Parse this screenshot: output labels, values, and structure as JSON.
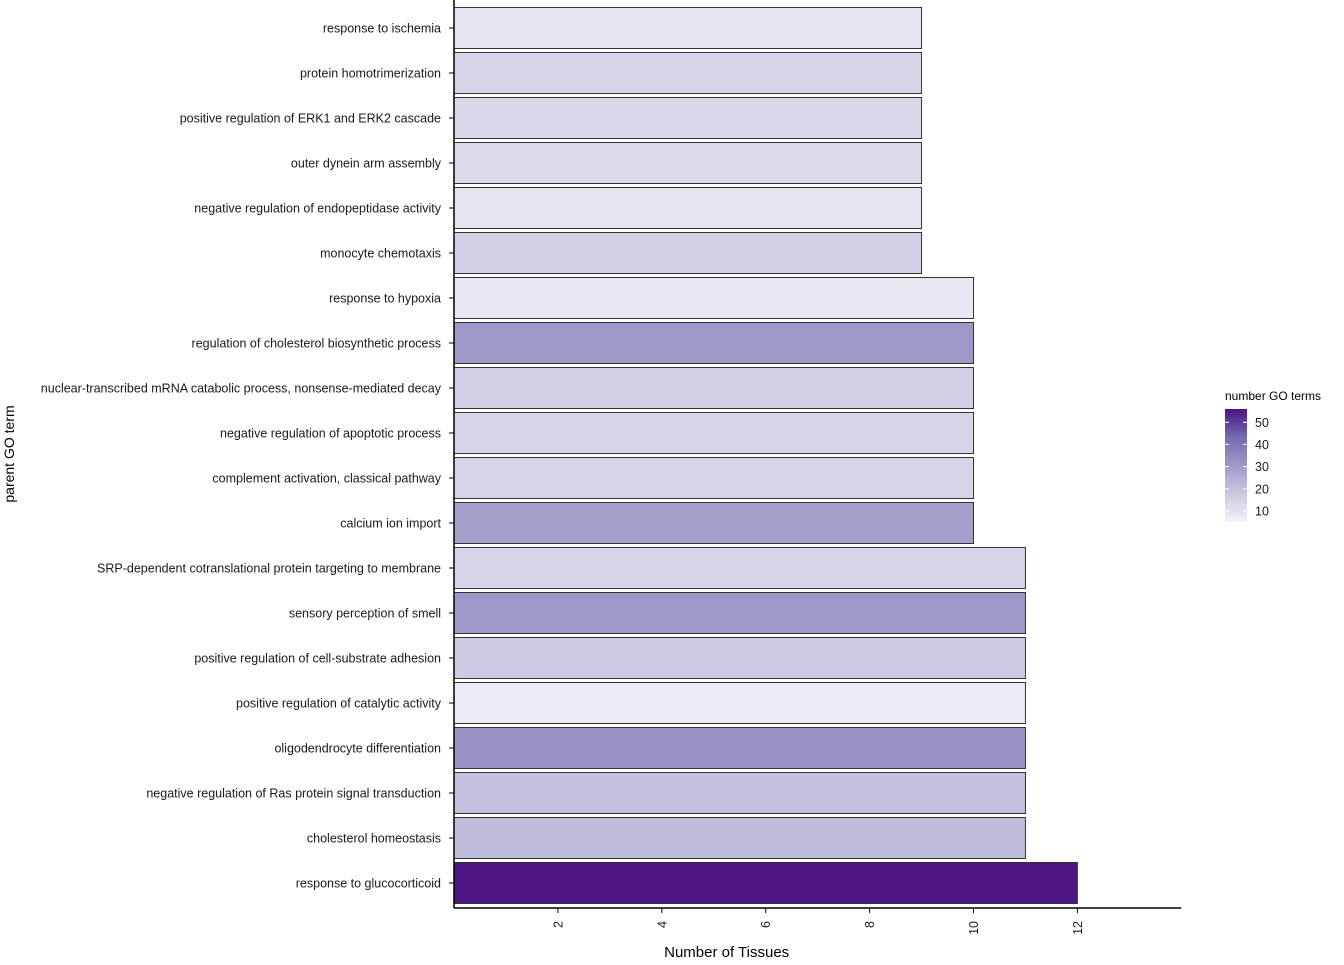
{
  "chart_data": {
    "type": "bar",
    "orientation": "horizontal",
    "xlabel": "Number of Tissues",
    "ylabel": "parent GO term",
    "xlim": [
      0,
      14
    ],
    "xticks": [
      2,
      4,
      6,
      8,
      10,
      12
    ],
    "grid": false,
    "categories": [
      "response to ischemia",
      "protein homotrimerization",
      "positive regulation of ERK1 and ERK2 cascade",
      "outer dynein arm assembly",
      "negative regulation of endopeptidase activity",
      "monocyte chemotaxis",
      "response to hypoxia",
      "regulation of cholesterol biosynthetic process",
      "nuclear-transcribed mRNA catabolic process, nonsense-mediated decay",
      "negative regulation of apoptotic process",
      "complement activation, classical pathway",
      "calcium ion import",
      "SRP-dependent cotranslational protein targeting to membrane",
      "sensory perception of smell",
      "positive regulation of cell-substrate adhesion",
      "positive regulation of catalytic activity",
      "oligodendrocyte differentiation",
      "negative regulation of Ras protein signal transduction",
      "cholesterol homeostasis",
      "response to glucocorticoid"
    ],
    "values": [
      9,
      9,
      9,
      9,
      9,
      9,
      10,
      10,
      10,
      10,
      10,
      10,
      11,
      11,
      11,
      11,
      11,
      11,
      11,
      12
    ],
    "fill_values": [
      9,
      14,
      13,
      12,
      9,
      15,
      8,
      31,
      15,
      14,
      14,
      29,
      14,
      31,
      17,
      7,
      32,
      20,
      21,
      56
    ],
    "legend": {
      "title": "number GO terms",
      "ticks": [
        10,
        20,
        30,
        40,
        50
      ],
      "range": [
        5,
        56
      ],
      "colors": [
        "#f2f0f7",
        "#cbc9e2",
        "#9e9ac8",
        "#756bb1",
        "#4d1583"
      ],
      "position": "right"
    }
  }
}
